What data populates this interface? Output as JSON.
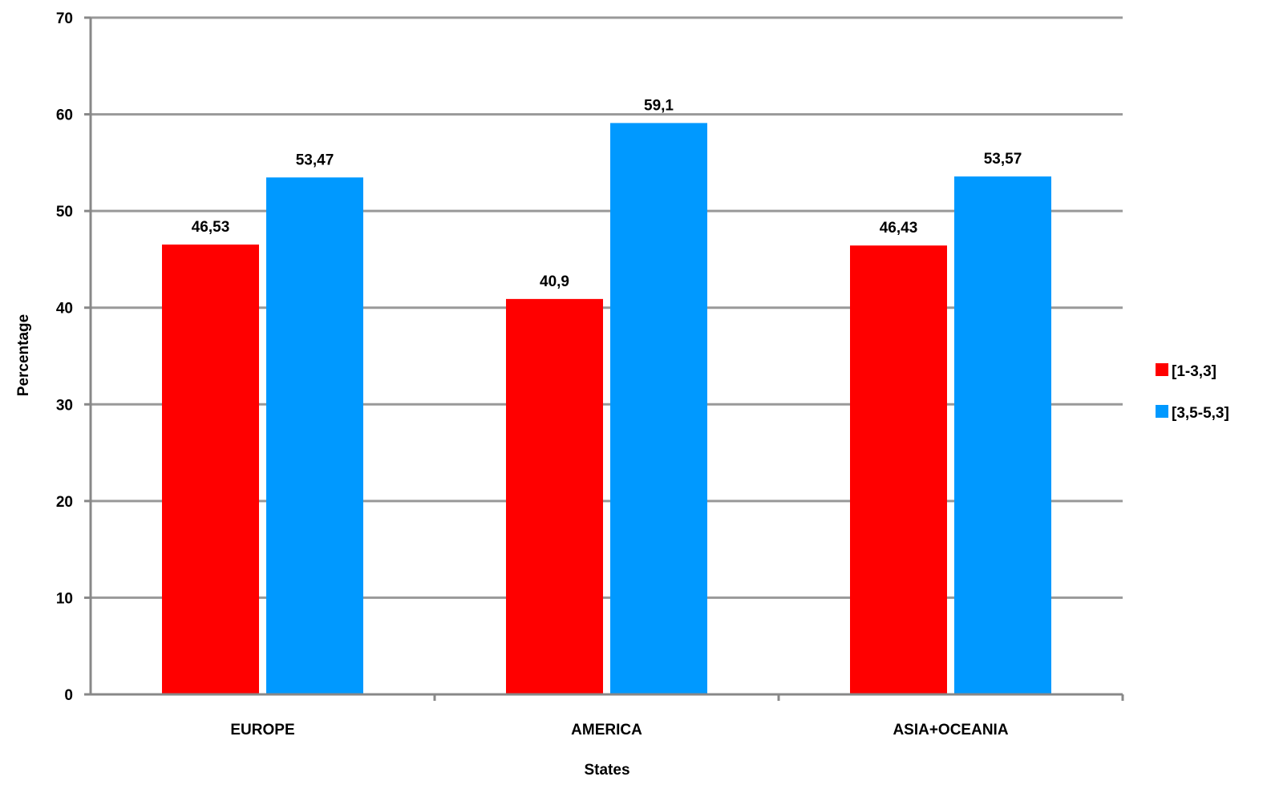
{
  "chart_data": {
    "type": "bar",
    "title": "",
    "xlabel": "States",
    "ylabel": "Percentage",
    "categories": [
      "EUROPE",
      "AMERICA",
      "ASIA+OCEANIA"
    ],
    "series": [
      {
        "name": "[1-3,3]",
        "color": "#ff0000",
        "values": [
          46.53,
          40.9,
          46.43
        ],
        "labels": [
          "46,53",
          "40,9",
          "46,43"
        ]
      },
      {
        "name": "[3,5-5,3]",
        "color": "#0099ff",
        "values": [
          53.47,
          59.1,
          53.57
        ],
        "labels": [
          "53,47",
          "59,1",
          "53,57"
        ]
      }
    ],
    "ylim": [
      0,
      70
    ],
    "yticks": [
      0,
      10,
      20,
      30,
      40,
      50,
      60,
      70
    ],
    "grid": true,
    "grid_color": "#999999",
    "legend_position": "right"
  }
}
